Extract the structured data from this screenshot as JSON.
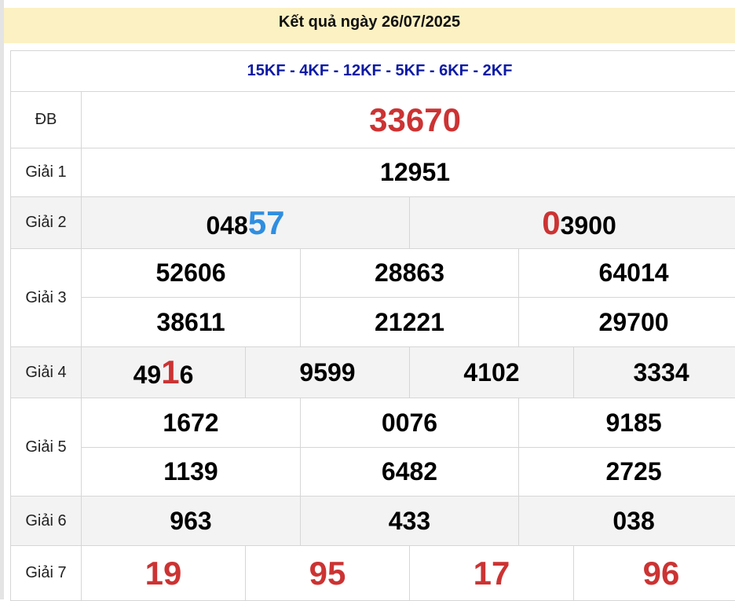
{
  "header": {
    "title": "Kết quả ngày 26/07/2025"
  },
  "codes": "15KF - 4KF - 12KF - 5KF - 6KF - 2KF",
  "colors": {
    "red": "#cc3333",
    "blue": "#2f8ee0",
    "codes": "#0d1aa6",
    "header_bg": "#fcf1c2"
  },
  "prizes": {
    "db": {
      "label": "ĐB",
      "value": "33670"
    },
    "g1": {
      "label": "Giải 1",
      "value": "12951"
    },
    "g2": {
      "label": "Giải 2",
      "values": [
        {
          "pre": "048",
          "hl": "57",
          "post": ""
        },
        {
          "pre": "",
          "hl": "0",
          "post": "3900"
        }
      ]
    },
    "g3": {
      "label": "Giải 3",
      "values": [
        "52606",
        "28863",
        "64014",
        "38611",
        "21221",
        "29700"
      ]
    },
    "g4": {
      "label": "Giải 4",
      "values": [
        {
          "pre": "49",
          "hl": "1",
          "post": "6"
        },
        "9599",
        "4102",
        "3334"
      ]
    },
    "g5": {
      "label": "Giải 5",
      "values": [
        "1672",
        "0076",
        "9185",
        "1139",
        "6482",
        "2725"
      ]
    },
    "g6": {
      "label": "Giải 6",
      "values": [
        "963",
        "433",
        "038"
      ]
    },
    "g7": {
      "label": "Giải 7",
      "values": [
        "19",
        "95",
        "17",
        "96"
      ]
    }
  }
}
